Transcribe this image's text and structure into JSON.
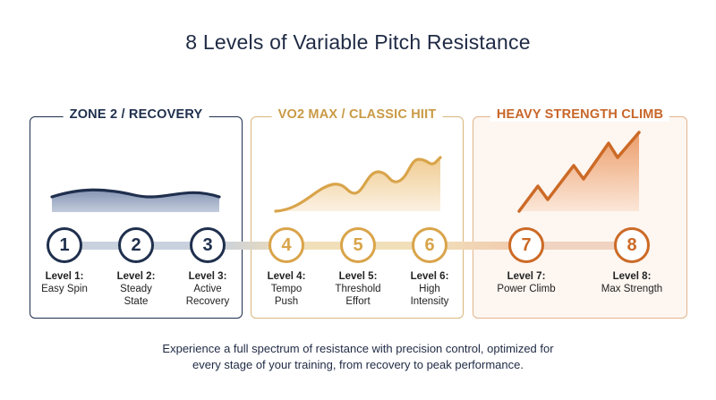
{
  "title": "8 Levels of Variable Pitch Resistance",
  "zones": [
    {
      "name": "ZONE 2 / RECOVERY",
      "color": "#1f2f4d"
    },
    {
      "name": "VO2 MAX / CLASSIC HIIT",
      "color": "#c99a45"
    },
    {
      "name": "HEAVY STRENGTH CLIMB",
      "color": "#c8662a"
    }
  ],
  "levels": [
    {
      "num": "1",
      "label": "Level 1:",
      "desc1": "Easy Spin",
      "desc2": "",
      "color": "#1f2f4d"
    },
    {
      "num": "2",
      "label": "Level 2:",
      "desc1": "Steady",
      "desc2": "State",
      "color": "#1f2f4d"
    },
    {
      "num": "3",
      "label": "Level 3:",
      "desc1": "Active",
      "desc2": "Recovery",
      "color": "#1f2f4d"
    },
    {
      "num": "4",
      "label": "Level 4:",
      "desc1": "Tempo",
      "desc2": "Push",
      "color": "#d9a44a"
    },
    {
      "num": "5",
      "label": "Level 5:",
      "desc1": "Threshold",
      "desc2": "Effort",
      "color": "#d9a44a"
    },
    {
      "num": "6",
      "label": "Level 6:",
      "desc1": "High",
      "desc2": "Intensity",
      "color": "#d9a44a"
    },
    {
      "num": "7",
      "label": "Level 7:",
      "desc1": "Power Climb",
      "desc2": "",
      "color": "#cc6a26"
    },
    {
      "num": "8",
      "label": "Level 8:",
      "desc1": "Max Strength",
      "desc2": "",
      "color": "#cc6a26"
    }
  ],
  "caption": {
    "line1": "Experience a full spectrum of resistance with precision control, optimized for",
    "line2": "every stage of your training, from recovery to peak performance."
  }
}
